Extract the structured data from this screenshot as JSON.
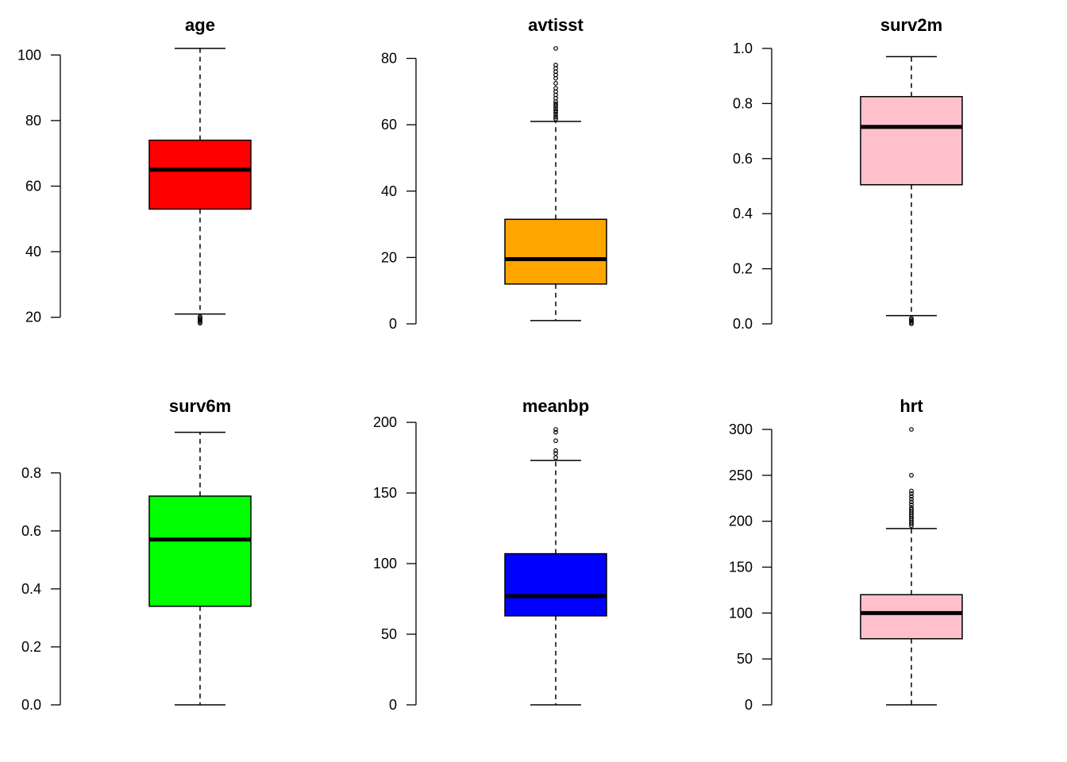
{
  "chart_data": [
    {
      "type": "boxplot",
      "title": "age",
      "color": "#FF0000",
      "ylim": [
        18,
        102
      ],
      "yticks": [
        20,
        40,
        60,
        80,
        100
      ],
      "ytick_labels": [
        "20",
        "40",
        "60",
        "80",
        "100"
      ],
      "stats": {
        "whisker_low": 21,
        "q1": 53,
        "median": 65,
        "q3": 74,
        "whisker_high": 102
      },
      "outliers": [
        18.2,
        18.6,
        19.0,
        19.4,
        19.8,
        20.2
      ]
    },
    {
      "type": "boxplot",
      "title": "avtisst",
      "color": "#FFA500",
      "ylim": [
        0,
        83
      ],
      "yticks": [
        0,
        20,
        40,
        60,
        80
      ],
      "ytick_labels": [
        "0",
        "20",
        "40",
        "60",
        "80"
      ],
      "stats": {
        "whisker_low": 1,
        "q1": 12,
        "median": 19.5,
        "q3": 31.5,
        "whisker_high": 61
      },
      "outliers": [
        61.7,
        62.3,
        63,
        63.7,
        64.3,
        65,
        65.7,
        66.3,
        67,
        68,
        69,
        70,
        71,
        72.5,
        74,
        75,
        76,
        77,
        78,
        83
      ]
    },
    {
      "type": "boxplot",
      "title": "surv2m",
      "color": "#FFC0CB",
      "ylim": [
        0,
        1
      ],
      "yticks": [
        0,
        0.2,
        0.4,
        0.6,
        0.8,
        1.0
      ],
      "ytick_labels": [
        "0.0",
        "0.2",
        "0.4",
        "0.6",
        "0.8",
        "1.0"
      ],
      "stats": {
        "whisker_low": 0.03,
        "q1": 0.505,
        "median": 0.715,
        "q3": 0.825,
        "whisker_high": 0.97
      },
      "outliers": [
        0.0,
        0.005,
        0.01,
        0.015,
        0.02
      ]
    },
    {
      "type": "boxplot",
      "title": "surv6m",
      "color": "#00FF00",
      "ylim": [
        0,
        0.95
      ],
      "yticks": [
        0,
        0.2,
        0.4,
        0.6,
        0.8
      ],
      "ytick_labels": [
        "0.0",
        "0.2",
        "0.4",
        "0.6",
        "0.8"
      ],
      "stats": {
        "whisker_low": 0.0,
        "q1": 0.34,
        "median": 0.57,
        "q3": 0.72,
        "whisker_high": 0.94
      },
      "outliers": []
    },
    {
      "type": "boxplot",
      "title": "meanbp",
      "color": "#0000FF",
      "ylim": [
        0,
        195
      ],
      "yticks": [
        0,
        50,
        100,
        150,
        200
      ],
      "ytick_labels": [
        "0",
        "50",
        "100",
        "150",
        "200"
      ],
      "stats": {
        "whisker_low": 0,
        "q1": 63,
        "median": 77,
        "q3": 107,
        "whisker_high": 173
      },
      "outliers": [
        175,
        178,
        180,
        187,
        193,
        195
      ]
    },
    {
      "type": "boxplot",
      "title": "hrt",
      "color": "#FFC0CB",
      "ylim": [
        0,
        300
      ],
      "yticks": [
        0,
        50,
        100,
        150,
        200,
        250,
        300
      ],
      "ytick_labels": [
        "0",
        "50",
        "100",
        "150",
        "200",
        "250",
        "300"
      ],
      "stats": {
        "whisker_low": 0,
        "q1": 72,
        "median": 100,
        "q3": 120,
        "whisker_high": 192
      },
      "outliers": [
        195,
        197,
        199,
        201,
        203,
        205,
        207,
        209,
        211,
        213,
        215,
        218,
        221,
        224,
        227,
        230,
        233,
        250,
        300
      ]
    }
  ]
}
